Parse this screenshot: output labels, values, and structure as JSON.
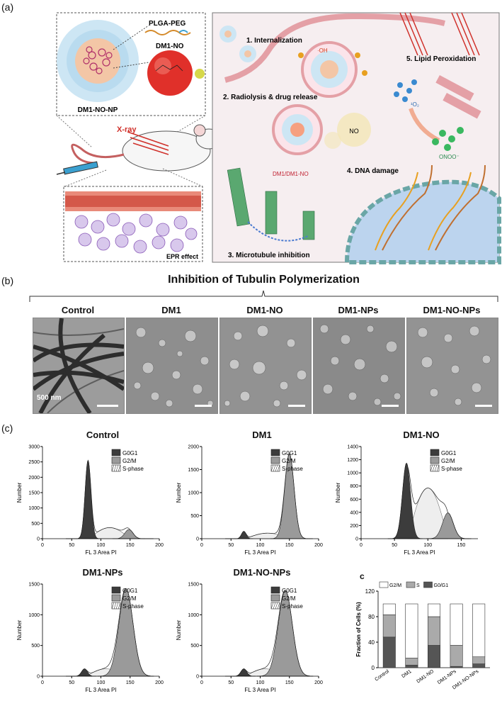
{
  "panel_a": {
    "letter": "(a)",
    "np_label": "DM1-NO-NP",
    "polymer_label": "PLGA-PEG",
    "drug_label": "DM1-NO",
    "xray_label": "X-ray",
    "epr_label": "EPR effect",
    "steps": {
      "s1": "1. Internalization",
      "s2": "2. Radiolysis & drug release",
      "s3": "3. Microtubule inhibition",
      "s4": "4. DNA damage",
      "s5": "5. Lipid Peroxidation"
    },
    "species": {
      "oh": "·OH",
      "o2": "¹O₂",
      "no": "NO",
      "onoo": "ONOO⁻",
      "drug_release": "DM1/DM1-NO"
    }
  },
  "panel_b": {
    "letter": "(b)",
    "title": "Inhibition of Tubulin Polymerization",
    "labels": [
      "Control",
      "DM1",
      "DM1-NO",
      "DM1-NPs",
      "DM1-NO-NPs"
    ],
    "scale_bar": "500 nm"
  },
  "panel_c": {
    "letter": "(c)",
    "legend": [
      "G0G1",
      "G2/M",
      "S-phase"
    ],
    "xlabel": "FL 3 Area PI",
    "ylabel": "Number",
    "histograms": [
      {
        "title": "Control",
        "yticks": [
          0,
          500,
          1000,
          1500,
          2000,
          2500,
          3000
        ],
        "xticks": [
          0,
          50,
          100,
          150,
          200
        ]
      },
      {
        "title": "DM1",
        "yticks": [
          0,
          500,
          1000,
          1500,
          2000
        ],
        "xticks": [
          0,
          50,
          100,
          150,
          200
        ]
      },
      {
        "title": "DM1-NO",
        "yticks": [
          0,
          200,
          400,
          600,
          800,
          1000,
          1200,
          1400
        ],
        "xticks": [
          0,
          50,
          100,
          150
        ]
      },
      {
        "title": "DM1-NPs",
        "yticks": [
          0,
          500,
          1000,
          1500
        ],
        "xticks": [
          0,
          50,
          100,
          150,
          200
        ]
      },
      {
        "title": "DM1-NO-NPs",
        "yticks": [
          0,
          500,
          1000,
          1500
        ],
        "xticks": [
          0,
          50,
          100,
          150,
          200
        ]
      }
    ],
    "bar_panel_letter": "c"
  },
  "chart_data": {
    "type": "bar",
    "stacked": true,
    "categories": [
      "Control",
      "DM1",
      "DM1-NO",
      "DM1-NPs",
      "DM1-NO-NPs"
    ],
    "series": [
      {
        "name": "G0/G1",
        "values": [
          48,
          4,
          35,
          2,
          6
        ],
        "color": "#555555"
      },
      {
        "name": "S",
        "values": [
          35,
          11,
          45,
          33,
          11
        ],
        "color": "#aaaaaa"
      },
      {
        "name": "G2/M",
        "values": [
          17,
          85,
          20,
          65,
          83
        ],
        "color": "#ffffff"
      }
    ],
    "ylabel": "Fraction of Cells (%)",
    "ylim": [
      0,
      120
    ],
    "yticks": [
      0,
      40,
      80,
      120
    ],
    "legend_position": "top"
  }
}
